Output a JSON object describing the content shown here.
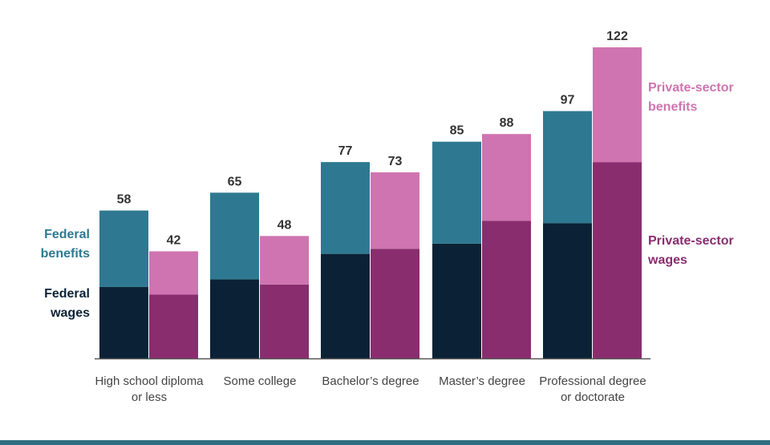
{
  "colors": {
    "federal_wages": "#0b2236",
    "federal_benefits": "#2e7991",
    "private_wages": "#8a2d6f",
    "private_benefits": "#cf74b0",
    "axis": "#555555",
    "value_label": "#333333",
    "category_label": "#444444",
    "bottom_rule": "#2e6e80"
  },
  "chart_data": {
    "type": "bar",
    "stacked": true,
    "grouped": true,
    "categories": [
      [
        "High school diploma",
        "or less"
      ],
      [
        "Some college"
      ],
      [
        "Bachelor’s degree"
      ],
      [
        "Master’s degree"
      ],
      [
        "Professional degree",
        "or doctorate"
      ]
    ],
    "series": [
      {
        "name": "Federal wages",
        "group": "federal",
        "values": [
          28,
          31,
          41,
          45,
          53
        ]
      },
      {
        "name": "Federal benefits",
        "group": "federal",
        "values": [
          30,
          34,
          36,
          40,
          44
        ]
      },
      {
        "name": "Private-sector wages",
        "group": "private",
        "values": [
          25,
          29,
          43,
          54,
          77
        ]
      },
      {
        "name": "Private-sector benefits",
        "group": "private",
        "values": [
          17,
          19,
          30,
          34,
          45
        ]
      }
    ],
    "totals": {
      "federal": [
        58,
        65,
        77,
        85,
        97
      ],
      "private": [
        42,
        48,
        73,
        88,
        122
      ]
    },
    "legend": {
      "federal_benefits": [
        "Federal",
        "benefits"
      ],
      "federal_wages": [
        "Federal",
        "wages"
      ],
      "private_benefits": [
        "Private-sector",
        "benefits"
      ],
      "private_wages": [
        "Private-sector",
        "wages"
      ]
    },
    "ylim": [
      0,
      122
    ],
    "grid": false
  }
}
